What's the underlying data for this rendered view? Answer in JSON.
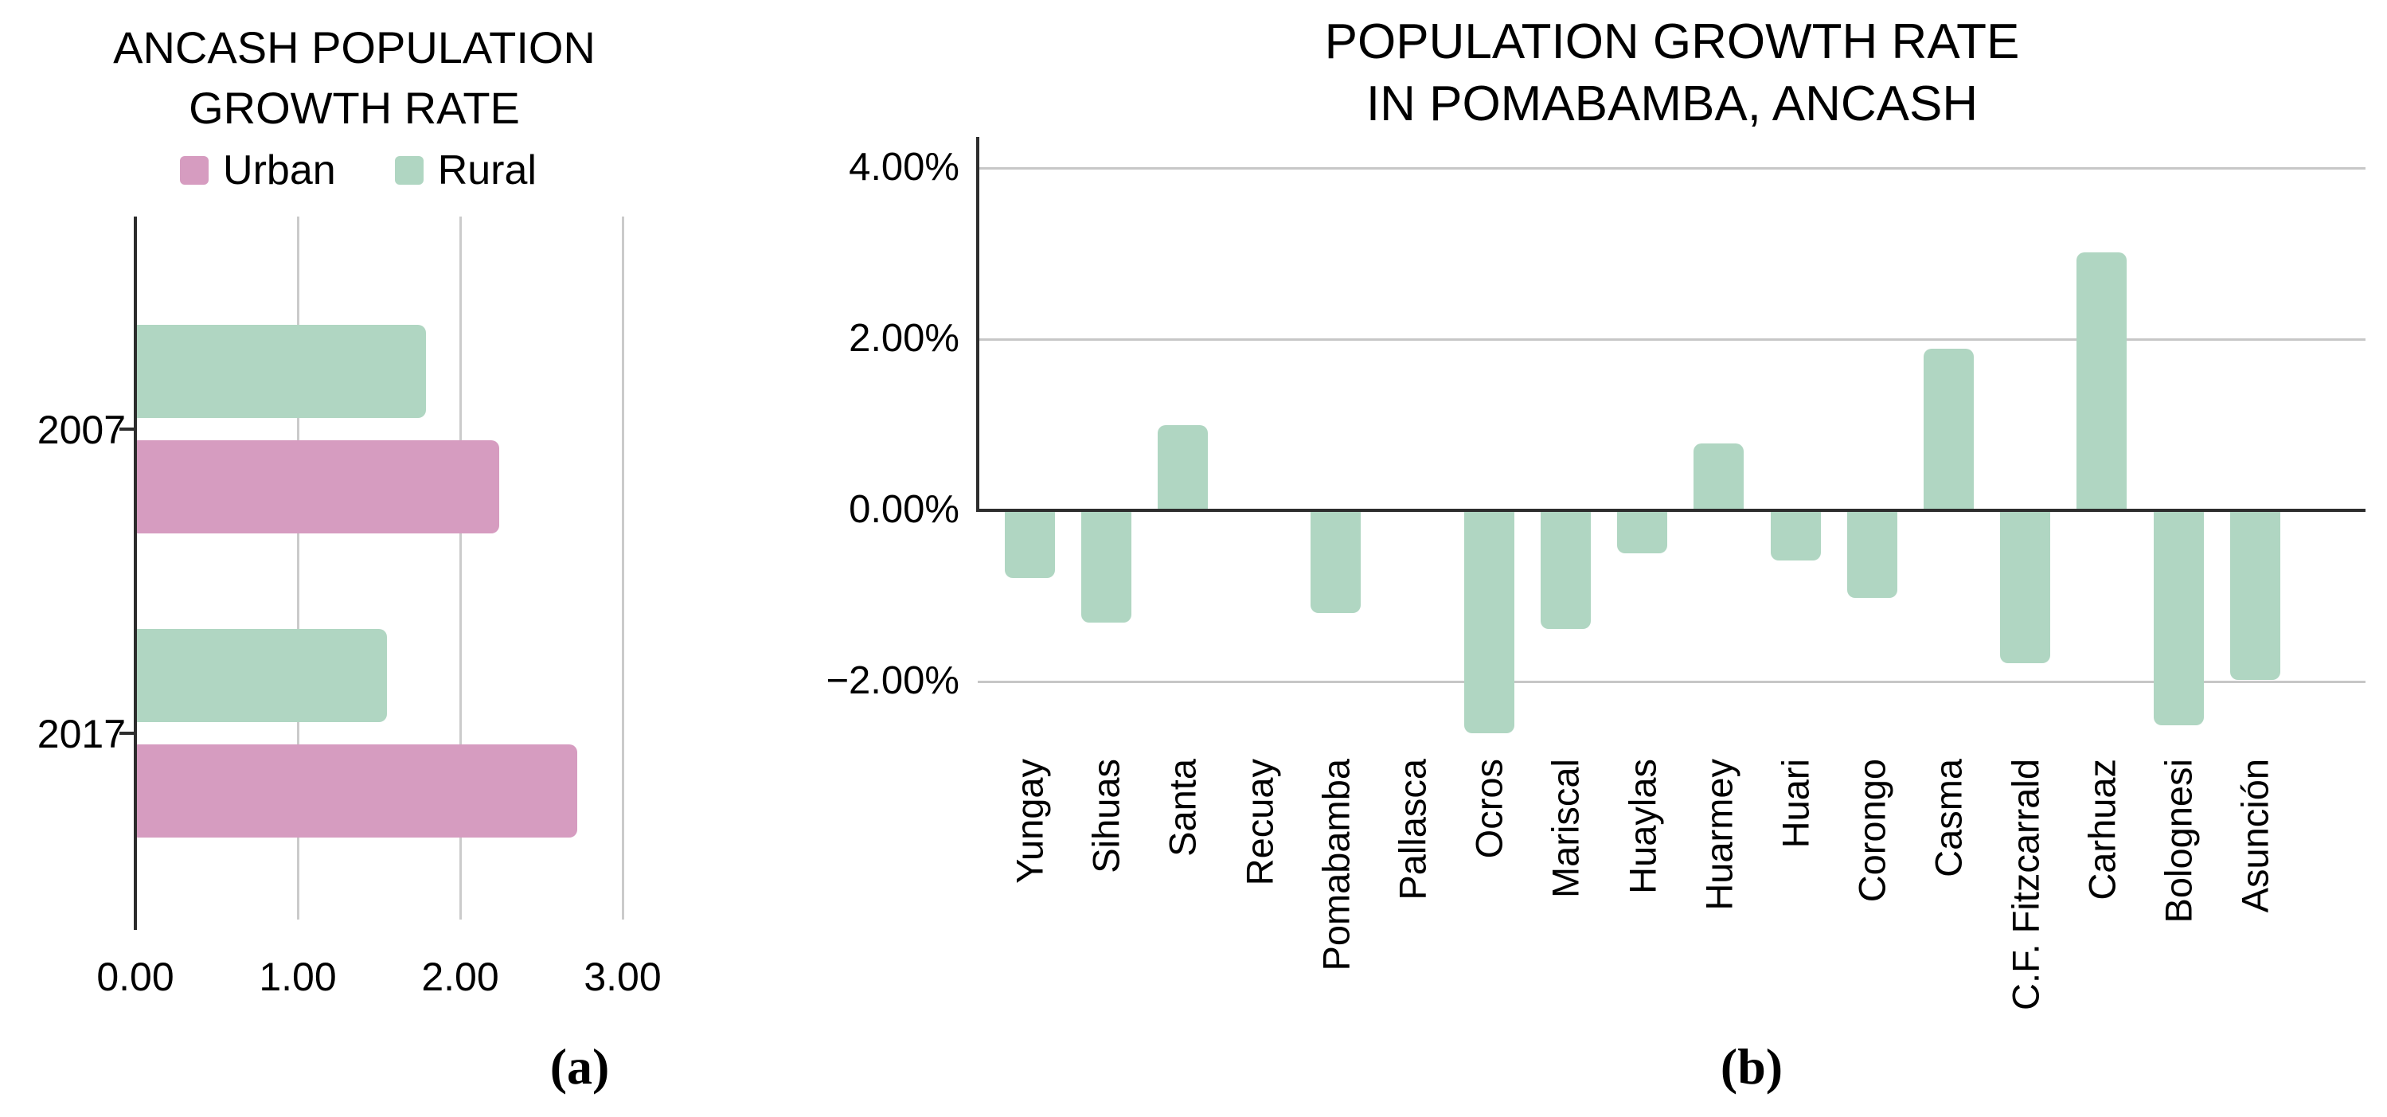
{
  "chart_data": [
    {
      "id": "ancash-growth",
      "type": "bar",
      "orientation": "horizontal",
      "title": "ANCASH POPULATION GROWTH RATE",
      "title_lines": [
        "ANCASH POPULATION",
        "GROWTH RATE"
      ],
      "legend": [
        {
          "name": "Urban",
          "color": "#d69cc0"
        },
        {
          "name": "Rural",
          "color": "#b0d6c2"
        }
      ],
      "legend_position": "top",
      "categories": [
        "2007",
        "2017"
      ],
      "series": [
        {
          "name": "Rural",
          "color": "#b0d6c2",
          "values": [
            1.79,
            1.55
          ]
        },
        {
          "name": "Urban",
          "color": "#d69cc0",
          "values": [
            2.24,
            2.72
          ]
        }
      ],
      "x_ticks": [
        "0.00",
        "1.00",
        "2.00",
        "3.00"
      ],
      "x_tick_values": [
        0,
        1,
        2,
        3
      ],
      "xlim": [
        0,
        3.49
      ],
      "grid": "vertical",
      "caption": "(a)"
    },
    {
      "id": "pomabamba-growth",
      "type": "bar",
      "orientation": "vertical",
      "title": "POPULATION GROWTH RATE IN POMABAMBA, ANCASH",
      "title_lines": [
        "POPULATION GROWTH RATE",
        "IN POMABAMBA, ANCASH"
      ],
      "bar_color": "#b0d6c2",
      "categories": [
        "Yungay",
        "Sihuas",
        "Santa",
        "Recuay",
        "Pomabamba",
        "Pallasca",
        "Ocros",
        "Mariscal",
        "Huaylas",
        "Huarmey",
        "Huari",
        "Corongo",
        "Casma",
        "C.F. Fitzcarrald",
        "Carhuaz",
        "Bolognesi",
        "Asunción"
      ],
      "values": [
        -0.79,
        -1.31,
        1.0,
        0,
        -1.2,
        0,
        -2.6,
        -1.39,
        -0.5,
        0.78,
        -0.59,
        -1.02,
        1.89,
        -1.79,
        3.01,
        -2.51,
        -1.98
      ],
      "y_ticks": [
        "4.00%",
        "2.00%",
        "0.00%",
        "−2.00%"
      ],
      "y_tick_values": [
        4,
        2,
        0,
        -2
      ],
      "ylim": [
        -2.9,
        4.36
      ],
      "grid": "horizontal",
      "caption": "(b)"
    }
  ]
}
